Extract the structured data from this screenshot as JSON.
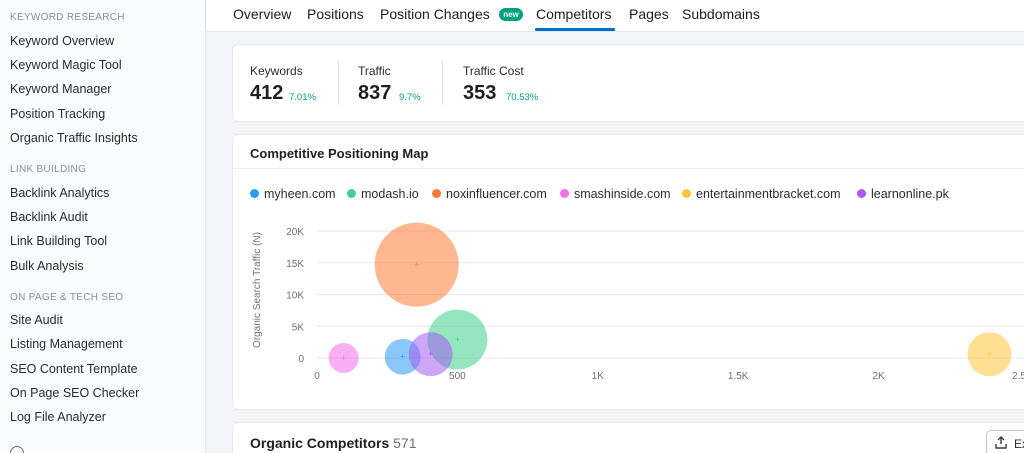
{
  "sidebar": {
    "sections": [
      {
        "title": "KEYWORD RESEARCH",
        "items": [
          "Keyword Overview",
          "Keyword Magic Tool",
          "Keyword Manager",
          "Position Tracking",
          "Organic Traffic Insights"
        ]
      },
      {
        "title": "LINK BUILDING",
        "items": [
          "Backlink Analytics",
          "Backlink Audit",
          "Link Building Tool",
          "Bulk Analysis"
        ]
      },
      {
        "title": "ON PAGE & TECH SEO",
        "items": [
          "Site Audit",
          "Listing Management",
          "SEO Content Template",
          "On Page SEO Checker",
          "Log File Analyzer"
        ]
      }
    ]
  },
  "tabs": {
    "items": [
      "Overview",
      "Positions",
      "Position Changes",
      "Competitors",
      "Pages",
      "Subdomains"
    ],
    "active": "Competitors",
    "new_badge": "new"
  },
  "metrics": [
    {
      "label": "Keywords",
      "value": "412",
      "delta": "7.01%"
    },
    {
      "label": "Traffic",
      "value": "837",
      "delta": "9.7%"
    },
    {
      "label": "Traffic Cost",
      "value": "353",
      "delta": "70.53%"
    }
  ],
  "positioning_map": {
    "title": "Competitive Positioning Map"
  },
  "chart_data": {
    "type": "scatter",
    "ylabel": "Organic Search Traffic (N)",
    "xlabel": "",
    "xlim": [
      0,
      2500
    ],
    "ylim": [
      0,
      20000
    ],
    "x_ticks": [
      "0",
      "500",
      "1K",
      "1.5K",
      "2K",
      "2.5"
    ],
    "y_ticks": [
      "0",
      "5K",
      "10K",
      "15K",
      "20K"
    ],
    "legend_position": "top-left",
    "series": [
      {
        "name": "myheen.com",
        "color": "#2b9af3",
        "x": 305,
        "y": 200,
        "size": 10
      },
      {
        "name": "modash.io",
        "color": "#3fcf8e",
        "x": 500,
        "y": 2900,
        "size": 28
      },
      {
        "name": "noxinfluencer.com",
        "color": "#ff7c36",
        "x": 355,
        "y": 14700,
        "size": 55
      },
      {
        "name": "smashinside.com",
        "color": "#f36ee9",
        "x": 95,
        "y": 0,
        "size": 7
      },
      {
        "name": "entertainmentbracket.com",
        "color": "#ffc53d",
        "x": 2395,
        "y": 600,
        "size": 15
      },
      {
        "name": "learnonline.pk",
        "color": "#a45cf2",
        "x": 405,
        "y": 600,
        "size": 15
      }
    ]
  },
  "organic_competitors": {
    "title": "Organic Competitors",
    "count": "571",
    "export_label": "Ex"
  }
}
